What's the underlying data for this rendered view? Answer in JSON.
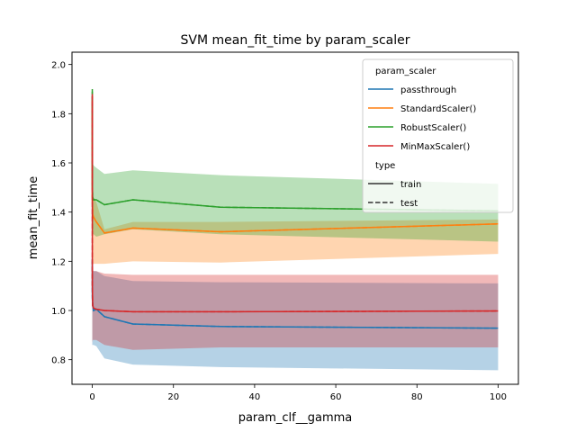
{
  "chart_data": {
    "type": "line",
    "title": "SVM mean_fit_time by param_scaler",
    "xlabel": "param_clf__gamma",
    "ylabel": "mean_fit_time",
    "xlim": [
      -5,
      105
    ],
    "ylim": [
      0.7,
      2.05
    ],
    "xticks": [
      0,
      20,
      40,
      60,
      80,
      100
    ],
    "yticks": [
      0.8,
      1.0,
      1.2,
      1.4,
      1.6,
      1.8,
      2.0
    ],
    "ytick_labels": [
      "0.8",
      "1.0",
      "1.2",
      "1.4",
      "1.6",
      "1.8",
      "2.0"
    ],
    "grid": false,
    "x": [
      0.001,
      0.01,
      0.1,
      0.3,
      1,
      3,
      10,
      31.6,
      100
    ],
    "series": [
      {
        "name": "passthrough",
        "color": "#1f77b4",
        "train": [
          1.2,
          1.05,
          1.02,
          1.0,
          1.005,
          0.975,
          0.945,
          0.935,
          0.928
        ],
        "test": [
          1.21,
          1.06,
          1.02,
          1.0,
          1.005,
          0.975,
          0.945,
          0.935,
          0.928
        ],
        "lower": [
          0.85,
          0.86,
          0.86,
          0.86,
          0.855,
          0.805,
          0.78,
          0.77,
          0.757
        ],
        "upper": [
          1.6,
          1.18,
          1.17,
          1.16,
          1.16,
          1.14,
          1.12,
          1.115,
          1.11
        ]
      },
      {
        "name": "StandardScaler()",
        "color": "#ff7f0e",
        "train": [
          1.85,
          1.45,
          1.39,
          1.38,
          1.36,
          1.315,
          1.335,
          1.32,
          1.352
        ],
        "test": [
          1.86,
          1.46,
          1.39,
          1.38,
          1.36,
          1.315,
          1.335,
          1.32,
          1.352
        ],
        "lower": [
          1.1,
          1.18,
          1.19,
          1.19,
          1.19,
          1.19,
          1.2,
          1.195,
          1.23
        ],
        "upper": [
          1.9,
          1.55,
          1.48,
          1.46,
          1.44,
          1.33,
          1.36,
          1.36,
          1.37
        ]
      },
      {
        "name": "RobustScaler()",
        "color": "#2ca02c",
        "train": [
          1.89,
          1.5,
          1.46,
          1.45,
          1.45,
          1.43,
          1.45,
          1.42,
          1.405
        ],
        "test": [
          1.9,
          1.51,
          1.46,
          1.45,
          1.45,
          1.43,
          1.45,
          1.42,
          1.405
        ],
        "lower": [
          1.3,
          1.3,
          1.31,
          1.31,
          1.3,
          1.31,
          1.33,
          1.31,
          1.28
        ],
        "upper": [
          1.98,
          1.62,
          1.6,
          1.59,
          1.58,
          1.555,
          1.57,
          1.55,
          1.515
        ]
      },
      {
        "name": "MinMaxScaler()",
        "color": "#d62728",
        "train": [
          1.87,
          1.1,
          1.02,
          1.01,
          1.005,
          1.0,
          0.995,
          0.995,
          0.998
        ],
        "test": [
          1.88,
          1.11,
          1.02,
          1.01,
          1.005,
          1.0,
          0.995,
          0.995,
          0.998
        ],
        "lower": [
          0.84,
          0.87,
          0.88,
          0.88,
          0.88,
          0.86,
          0.84,
          0.85,
          0.85
        ],
        "upper": [
          1.9,
          1.17,
          1.16,
          1.16,
          1.16,
          1.15,
          1.145,
          1.145,
          1.145
        ]
      }
    ],
    "legend": {
      "placement": "top-right",
      "title_hue": "param_scaler",
      "title_style": "type",
      "style_entries": [
        {
          "label": "train",
          "dash": "solid"
        },
        {
          "label": "test",
          "dash": "dashed"
        }
      ]
    }
  }
}
